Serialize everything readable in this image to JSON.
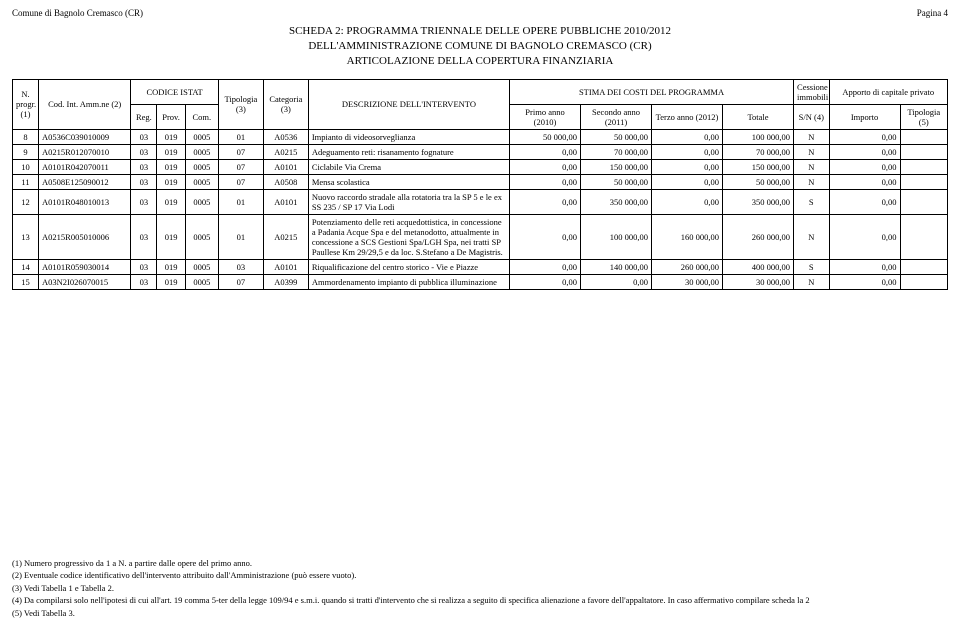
{
  "header": {
    "left": "Comune di Bagnolo Cremasco (CR)",
    "right": "Pagina 4"
  },
  "title": {
    "line1": "SCHEDA 2: PROGRAMMA TRIENNALE DELLE OPERE PUBBLICHE 2010/2012",
    "line2": "DELL'AMMINISTRAZIONE COMUNE DI BAGNOLO CREMASCO (CR)",
    "line3": "ARTICOLAZIONE DELLA COPERTURA FINANZIARIA"
  },
  "columns": {
    "n_progr": "N. progr. (1)",
    "cod_int": "Cod. Int. Amm.ne (2)",
    "codice_istat": "CODICE ISTAT",
    "reg": "Reg.",
    "prov": "Prov.",
    "com": "Com.",
    "tipologia": "Tipologia (3)",
    "categoria": "Categoria (3)",
    "descrizione": "DESCRIZIONE DELL'INTERVENTO",
    "stima": "STIMA DEI COSTI DEL PROGRAMMA",
    "primo": "Primo anno (2010)",
    "secondo": "Secondo anno (2011)",
    "terzo": "Terzo anno (2012)",
    "totale": "Totale",
    "cessione": "Cessione immobili",
    "sn": "S/N (4)",
    "apporto": "Apporto di capitale privato",
    "importo": "Importo",
    "tipol5": "Tipologia (5)"
  },
  "rows": [
    {
      "n": "8",
      "cod": "A0536C039010009",
      "reg": "03",
      "prov": "019",
      "com": "0005",
      "tip": "01",
      "cat": "A0536",
      "desc": "Impianto di videosorveglianza",
      "p": "50 000,00",
      "s": "50 000,00",
      "t": "0,00",
      "tot": "100 000,00",
      "sn": "N",
      "imp": "0,00",
      "t5": ""
    },
    {
      "n": "9",
      "cod": "A0215R012070010",
      "reg": "03",
      "prov": "019",
      "com": "0005",
      "tip": "07",
      "cat": "A0215",
      "desc": "Adeguamento reti: risanamento fognature",
      "p": "0,00",
      "s": "70 000,00",
      "t": "0,00",
      "tot": "70 000,00",
      "sn": "N",
      "imp": "0,00",
      "t5": ""
    },
    {
      "n": "10",
      "cod": "A0101R042070011",
      "reg": "03",
      "prov": "019",
      "com": "0005",
      "tip": "07",
      "cat": "A0101",
      "desc": "Ciclabile Via Crema",
      "p": "0,00",
      "s": "150 000,00",
      "t": "0,00",
      "tot": "150 000,00",
      "sn": "N",
      "imp": "0,00",
      "t5": ""
    },
    {
      "n": "11",
      "cod": "A0508E125090012",
      "reg": "03",
      "prov": "019",
      "com": "0005",
      "tip": "07",
      "cat": "A0508",
      "desc": "Mensa scolastica",
      "p": "0,00",
      "s": "50 000,00",
      "t": "0,00",
      "tot": "50 000,00",
      "sn": "N",
      "imp": "0,00",
      "t5": ""
    },
    {
      "n": "12",
      "cod": "A0101R048010013",
      "reg": "03",
      "prov": "019",
      "com": "0005",
      "tip": "01",
      "cat": "A0101",
      "desc": "Nuovo raccordo stradale alla rotatoria tra la SP 5 e le ex SS 235 / SP 17 Via Lodi",
      "p": "0,00",
      "s": "350 000,00",
      "t": "0,00",
      "tot": "350 000,00",
      "sn": "S",
      "imp": "0,00",
      "t5": ""
    },
    {
      "n": "13",
      "cod": "A0215R005010006",
      "reg": "03",
      "prov": "019",
      "com": "0005",
      "tip": "01",
      "cat": "A0215",
      "desc": "Potenziamento delle reti acquedottistica, in concessione a Padania Acque Spa e del metanodotto, attualmente in concessione a SCS Gestioni Spa/LGH Spa, nei tratti SP Paullese Km 29/29,5 e da loc. S.Stefano a De Magistris.",
      "p": "0,00",
      "s": "100 000,00",
      "t": "160 000,00",
      "tot": "260 000,00",
      "sn": "N",
      "imp": "0,00",
      "t5": ""
    },
    {
      "n": "14",
      "cod": "A0101R059030014",
      "reg": "03",
      "prov": "019",
      "com": "0005",
      "tip": "03",
      "cat": "A0101",
      "desc": "Riqualificazione del centro storico - Vie e Piazze",
      "p": "0,00",
      "s": "140 000,00",
      "t": "260 000,00",
      "tot": "400 000,00",
      "sn": "S",
      "imp": "0,00",
      "t5": ""
    },
    {
      "n": "15",
      "cod": "A03N2I026070015",
      "reg": "03",
      "prov": "019",
      "com": "0005",
      "tip": "07",
      "cat": "A0399",
      "desc": "Ammordenamento impianto di pubblica illuminazione",
      "p": "0,00",
      "s": "0,00",
      "t": "30 000,00",
      "tot": "30 000,00",
      "sn": "N",
      "imp": "0,00",
      "t5": ""
    }
  ],
  "footnotes": {
    "f1": "(1) Numero progressivo da 1 a N. a partire dalle opere del primo anno.",
    "f2": "(2) Eventuale codice identificativo dell'intervento attribuito dall'Amministrazione (può essere vuoto).",
    "f3": "(3) Vedi Tabella 1 e Tabella 2.",
    "f4": "(4) Da compilarsi solo nell'ipotesi di cui all'art. 19 comma 5-ter della legge 109/94 e s.m.i. quando si tratti d'intervento che si realizza a seguito di specifica alienazione a favore dell'appaltatore. In caso affermativo compilare scheda la 2",
    "f5": "(5) Vedi Tabella 3."
  },
  "style": {
    "widths": {
      "n": 22,
      "cod": 78,
      "reg": 22,
      "prov": 24,
      "com": 28,
      "tip": 38,
      "cat": 38,
      "desc": 170,
      "p": 60,
      "s": 60,
      "t": 60,
      "tot": 60,
      "sn": 30,
      "imp": 60,
      "t5": 40
    }
  }
}
